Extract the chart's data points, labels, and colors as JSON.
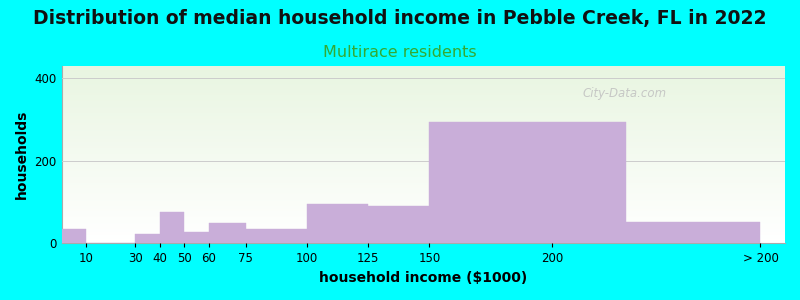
{
  "title": "Distribution of median household income in Pebble Creek, FL in 2022",
  "subtitle": "Multirace residents",
  "xlabel": "household income ($1000)",
  "ylabel": "households",
  "bar_color": "#c9aed9",
  "ylim": [
    0,
    430
  ],
  "yticks": [
    0,
    200,
    400
  ],
  "background_color": "#00ffff",
  "title_fontsize": 13.5,
  "subtitle_fontsize": 11.5,
  "subtitle_color": "#33aa33",
  "axis_label_fontsize": 10,
  "watermark_text": "City-Data.com",
  "tick_labels": [
    "10",
    "30",
    "40",
    "50",
    "60",
    "75",
    "100",
    "125",
    "150",
    "200",
    "> 200"
  ],
  "bar_left_edges": [
    0,
    10,
    30,
    40,
    50,
    60,
    75,
    100,
    125,
    150,
    170,
    230
  ],
  "bar_rights": [
    10,
    30,
    40,
    50,
    60,
    75,
    100,
    125,
    150,
    170,
    230,
    280
  ],
  "values": [
    35,
    2,
    22,
    75,
    28,
    50,
    35,
    95,
    90,
    295,
    52,
    0
  ],
  "xtick_positions": [
    10,
    30,
    40,
    50,
    60,
    75,
    100,
    125,
    150,
    170,
    230
  ],
  "xtick_labels": [
    "10",
    "30",
    "40",
    "50",
    "60",
    "75",
    "100",
    "125",
    "150",
    "200",
    "> 200"
  ]
}
